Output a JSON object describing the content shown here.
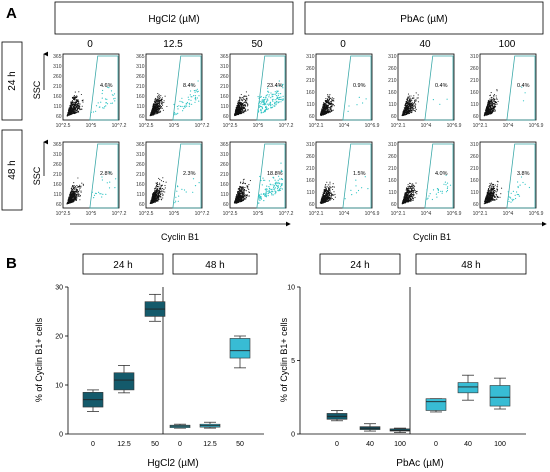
{
  "panel_a": {
    "letter": "A",
    "group_headers": [
      "HgCl2 (µM)",
      "PbAc (µM)"
    ],
    "row_labels": [
      "24 h",
      "48 h"
    ],
    "dose_labels": [
      "0",
      "12.5",
      "50",
      "0",
      "40",
      "100"
    ],
    "y_axis_label": "SSC",
    "x_axis_label": "Cyclin B1",
    "tick_labels": {
      "hg_x": [
        "10^2.5",
        "10^5",
        "10^7.2"
      ],
      "hg_y": [
        "365",
        "310",
        "260",
        "210",
        "160",
        "110",
        "60"
      ],
      "pb_x": [
        "10^2.1",
        "10^4",
        "10^6.9"
      ],
      "pb_y": [
        "310",
        "260",
        "210",
        "160",
        "110",
        "60"
      ]
    },
    "percent_labels": {
      "24 h": [
        "4.6%",
        "8.4%",
        "23.4%",
        "0.9%",
        "0.4%",
        "0.4%"
      ],
      "48 h": [
        "2.8%",
        "2.3%",
        "18.8%",
        "1.5%",
        "4.0%",
        "3.8%"
      ]
    },
    "colors": {
      "frame": "#000000",
      "gate": "#3aa8a8",
      "dots_negative": "#111111",
      "dots_positive": "#2fc4c4"
    }
  },
  "panel_b": {
    "letter": "B",
    "time_headers": [
      "24 h",
      "48 h"
    ],
    "y_axis_label": "% of Cyclin B1+ cells",
    "colors": {
      "24 h": "#145a6b",
      "48 h": "#38bcd4"
    },
    "charts": [
      {
        "type": "box",
        "xlabel": "HgCl2 (µM)",
        "categories": [
          "0",
          "12.5",
          "50",
          "0",
          "12.5",
          "50"
        ],
        "yticks": [
          0,
          10,
          20,
          30
        ],
        "ylim": [
          0,
          30
        ],
        "boxes": [
          {
            "time": "24 h",
            "dose": "0",
            "min": 4.6,
            "q1": 5.5,
            "median": 7.0,
            "q3": 8.5,
            "max": 9.0
          },
          {
            "time": "24 h",
            "dose": "12.5",
            "min": 8.4,
            "q1": 9.0,
            "median": 11.0,
            "q3": 12.5,
            "max": 14.0
          },
          {
            "time": "24 h",
            "dose": "50",
            "min": 23.0,
            "q1": 24.0,
            "median": 25.5,
            "q3": 27.0,
            "max": 28.5
          },
          {
            "time": "48 h",
            "dose": "0",
            "min": 1.2,
            "q1": 1.3,
            "median": 1.6,
            "q3": 1.8,
            "max": 2.0
          },
          {
            "time": "48 h",
            "dose": "12.5",
            "min": 1.2,
            "q1": 1.4,
            "median": 1.7,
            "q3": 2.0,
            "max": 2.4
          },
          {
            "time": "48 h",
            "dose": "50",
            "min": 13.5,
            "q1": 15.5,
            "median": 17.0,
            "q3": 19.5,
            "max": 20.0
          }
        ]
      },
      {
        "type": "box",
        "xlabel": "PbAc (µM)",
        "categories": [
          "0",
          "40",
          "100",
          "0",
          "40",
          "100"
        ],
        "yticks": [
          0,
          5,
          10
        ],
        "ylim": [
          0,
          10
        ],
        "boxes": [
          {
            "time": "24 h",
            "dose": "0",
            "min": 0.9,
            "q1": 1.0,
            "median": 1.2,
            "q3": 1.4,
            "max": 1.6
          },
          {
            "time": "24 h",
            "dose": "40",
            "min": 0.2,
            "q1": 0.3,
            "median": 0.4,
            "q3": 0.5,
            "max": 0.7
          },
          {
            "time": "24 h",
            "dose": "100",
            "min": 0.1,
            "q1": 0.2,
            "median": 0.25,
            "q3": 0.35,
            "max": 0.4
          },
          {
            "time": "48 h",
            "dose": "0",
            "min": 1.5,
            "q1": 1.6,
            "median": 2.2,
            "q3": 2.4,
            "max": 2.4
          },
          {
            "time": "48 h",
            "dose": "40",
            "min": 2.3,
            "q1": 2.8,
            "median": 3.2,
            "q3": 3.5,
            "max": 4.0
          },
          {
            "time": "48 h",
            "dose": "100",
            "min": 1.7,
            "q1": 1.9,
            "median": 2.5,
            "q3": 3.3,
            "max": 3.8
          }
        ]
      }
    ]
  }
}
